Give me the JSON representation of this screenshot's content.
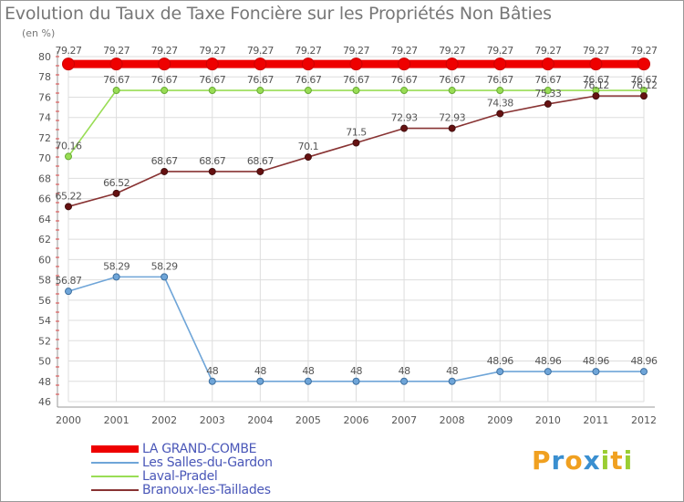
{
  "chart_data": {
    "type": "line",
    "title": "Evolution du Taux de Taxe Foncière sur les Propriétés Non Bâties",
    "ylabel": "(en %)",
    "xlabel": "",
    "ylim": [
      46,
      80
    ],
    "yticks": [
      46,
      48,
      50,
      52,
      54,
      56,
      58,
      60,
      62,
      64,
      66,
      68,
      70,
      72,
      74,
      76,
      78,
      80
    ],
    "categories": [
      "2000",
      "2001",
      "2002",
      "2003",
      "2004",
      "2005",
      "2006",
      "2007",
      "2008",
      "2009",
      "2010",
      "2011",
      "2012"
    ],
    "grid": true,
    "legend_position": "bottom-left",
    "series": [
      {
        "name": "LA GRAND-COMBE",
        "color": "#ee0000",
        "values": [
          79.27,
          79.27,
          79.27,
          79.27,
          79.27,
          79.27,
          79.27,
          79.27,
          79.27,
          79.27,
          79.27,
          79.27,
          79.27
        ],
        "labels": [
          "79.27",
          "79.27",
          "79.27",
          "79.27",
          "79.27",
          "79.27",
          "79.27",
          "79.27",
          "79.27",
          "79.27",
          "79.27",
          "79.27",
          "79.27"
        ]
      },
      {
        "name": "Les Salles-du-Gardon",
        "color": "#6fa5d8",
        "values": [
          56.87,
          58.29,
          58.29,
          48,
          48,
          48,
          48,
          48,
          48,
          48.96,
          48.96,
          48.96,
          48.96
        ],
        "labels": [
          "56.87",
          "58.29",
          "58.29",
          "48",
          "48",
          "48",
          "48",
          "48",
          "48",
          "48.96",
          "48.96",
          "48.96",
          "48.96"
        ]
      },
      {
        "name": "Laval-Pradel",
        "color": "#99dd55",
        "values": [
          70.16,
          76.67,
          76.67,
          76.67,
          76.67,
          76.67,
          76.67,
          76.67,
          76.67,
          76.67,
          76.67,
          76.67,
          76.67
        ],
        "labels": [
          "70.16",
          "76.67",
          "76.67",
          "76.67",
          "76.67",
          "76.67",
          "76.67",
          "76.67",
          "76.67",
          "76.67",
          "76.67",
          "76.67",
          "76.67"
        ]
      },
      {
        "name": "Branoux-les-Taillades",
        "color": "#883333",
        "values": [
          65.22,
          66.52,
          68.67,
          68.67,
          68.67,
          70.1,
          71.5,
          72.93,
          72.93,
          74.38,
          75.33,
          76.12,
          76.12
        ],
        "labels": [
          "65.22",
          "66.52",
          "68.67",
          "68.67",
          "68.67",
          "70.1",
          "71.5",
          "72.93",
          "72.93",
          "74.38",
          "75.33",
          "76.12",
          "76.12"
        ]
      }
    ]
  },
  "logo": {
    "letters": [
      "P",
      "r",
      "o",
      "x",
      "i",
      "t",
      "i"
    ],
    "colors": [
      "#f0a020",
      "#3a8fd0",
      "#f0a020",
      "#3a8fd0",
      "#9acd32",
      "#f0a020",
      "#9acd32"
    ]
  }
}
